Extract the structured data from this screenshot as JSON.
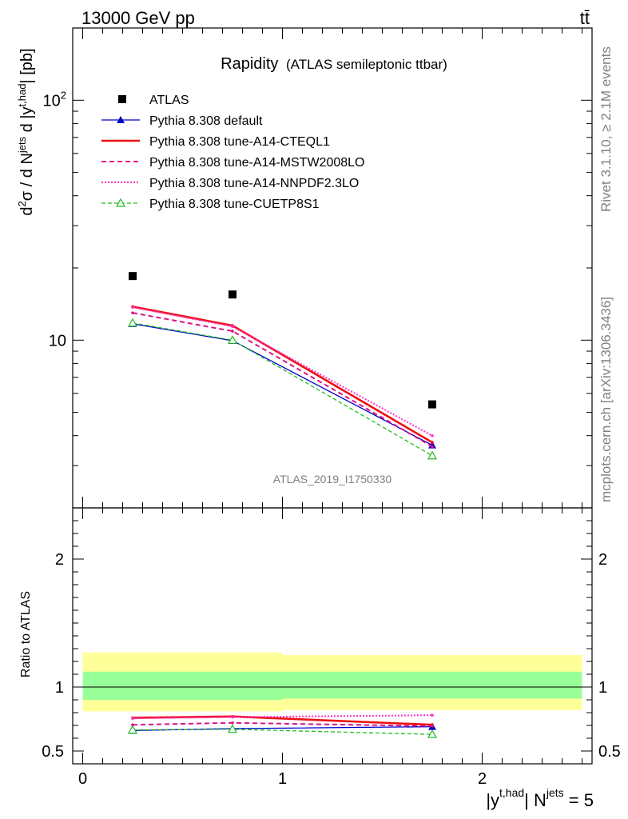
{
  "header": {
    "left": "13000 GeV pp",
    "right": "tt̄"
  },
  "side_text": {
    "top": "Rivet 3.1.10, ≥ 2.1M events",
    "bottom": "mcplots.cern.ch [arXiv:1306.3436]"
  },
  "watermark": "ATLAS_2019_I1750330",
  "chart_data": {
    "type": "line",
    "title": "Rapidity",
    "subtitle": "(ATLAS semileptonic ttbar)",
    "ylabel_main": "d²σ / d N^jets d |y^t,had| [pb]",
    "ylabel_ratio": "Ratio to ATLAS",
    "xlabel": "|y^t,had| N^jets = 5",
    "xlim": [
      -0.05,
      2.55
    ],
    "ylim_main": [
      2.0,
      200
    ],
    "ylim_ratio": [
      0.4,
      2.4
    ],
    "main_yscale": "log",
    "main_y_ticklabels": [
      {
        "v": 10,
        "label": "10"
      },
      {
        "v": 100,
        "label": "10²"
      }
    ],
    "ratio_y_ticklabels": [
      {
        "v": 0.5,
        "label": "0.5"
      },
      {
        "v": 1,
        "label": "1"
      },
      {
        "v": 2,
        "label": "2"
      }
    ],
    "x_ticklabels": [
      {
        "v": 0,
        "label": "0"
      },
      {
        "v": 1,
        "label": "1"
      },
      {
        "v": 2,
        "label": "2"
      }
    ],
    "data": {
      "name": "ATLAS",
      "x": [
        0.25,
        0.75,
        1.75
      ],
      "y": [
        18.5,
        15.5,
        5.4
      ],
      "bands": [
        {
          "xlo": 0.0,
          "xhi": 1.0,
          "outer": [
            0.81,
            1.27
          ],
          "inner": [
            0.9,
            1.12
          ]
        },
        {
          "xlo": 1.0,
          "xhi": 2.5,
          "outer": [
            0.82,
            1.25
          ],
          "inner": [
            0.91,
            1.12
          ]
        }
      ]
    },
    "series": [
      {
        "name": "Pythia 8.308 default",
        "color": "#0000cc",
        "dash": "",
        "width": 1.3,
        "marker": "tri-filled",
        "x": [
          0.25,
          0.75,
          1.75
        ],
        "y": [
          11.7,
          9.95,
          3.65
        ],
        "ratio": [
          0.66,
          0.675,
          0.69
        ]
      },
      {
        "name": "Pythia 8.308 tune-A14-CTEQL1",
        "color": "#ee1111",
        "dash": "",
        "width": 2.6,
        "marker": "",
        "x": [
          0.25,
          0.75,
          1.75
        ],
        "y": [
          13.8,
          11.5,
          3.75
        ],
        "ratio": [
          0.76,
          0.77,
          0.705
        ]
      },
      {
        "name": "Pythia 8.308 tune-A14-MSTW2008LO",
        "color": "#dd1188",
        "dash": "6,4",
        "width": 2.0,
        "marker": "",
        "x": [
          0.25,
          0.75,
          1.75
        ],
        "y": [
          13.0,
          10.9,
          3.6
        ],
        "ratio": [
          0.705,
          0.72,
          0.695
        ]
      },
      {
        "name": "Pythia 8.308 tune-A14-NNPDF2.3LO",
        "color": "#ff33cc",
        "dash": "2,2",
        "width": 2.0,
        "marker": "",
        "x": [
          0.25,
          0.75,
          1.75
        ],
        "y": [
          13.7,
          11.4,
          4.0
        ],
        "ratio": [
          0.755,
          0.765,
          0.78
        ]
      },
      {
        "name": "Pythia 8.308 tune-CUETP8S1",
        "color": "#22bb22",
        "dash": "5,3",
        "width": 1.3,
        "marker": "tri-open",
        "x": [
          0.25,
          0.75,
          1.75
        ],
        "y": [
          11.8,
          10.0,
          3.3
        ],
        "ratio": [
          0.665,
          0.67,
          0.63
        ]
      }
    ]
  }
}
